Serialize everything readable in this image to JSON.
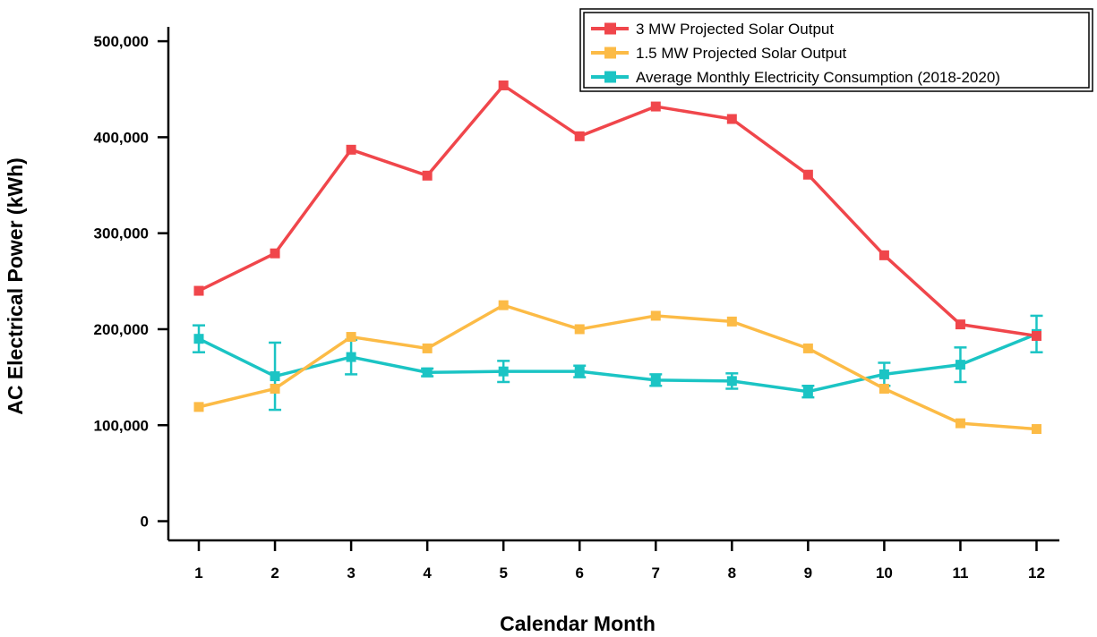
{
  "chart_data": {
    "type": "line",
    "title": "",
    "xlabel": "Calendar Month",
    "ylabel": "AC Electrical Power (kWh)",
    "x": [
      1,
      2,
      3,
      4,
      5,
      6,
      7,
      8,
      9,
      10,
      11,
      12
    ],
    "x_tick_labels": [
      "1",
      "2",
      "3",
      "4",
      "5",
      "6",
      "7",
      "8",
      "9",
      "10",
      "11",
      "12"
    ],
    "xlim": [
      0.6,
      12.3
    ],
    "ylim": [
      -20000,
      515000
    ],
    "y_ticks": [
      0,
      100000,
      200000,
      300000,
      400000,
      500000
    ],
    "y_tick_labels": [
      "0",
      "100,000",
      "200,000",
      "300,000",
      "400,000",
      "500,000"
    ],
    "grid": false,
    "legend_position": "top-right",
    "series": [
      {
        "name": "3 MW Projected Solar Output",
        "color": "#f0464b",
        "values": [
          240000,
          279000,
          387000,
          360000,
          454000,
          401000,
          432000,
          419000,
          361000,
          277000,
          205000,
          193000
        ]
      },
      {
        "name": "1.5 MW Projected Solar Output",
        "color": "#fcbb46",
        "values": [
          119000,
          138000,
          192000,
          180000,
          225000,
          200000,
          214000,
          208000,
          180000,
          138000,
          102000,
          96000
        ]
      },
      {
        "name": "Average Monthly Electricity Consumption (2018-2020)",
        "color": "#1bc4c4",
        "values": [
          190000,
          151000,
          171000,
          155000,
          156000,
          156000,
          147000,
          146000,
          135000,
          153000,
          163000,
          195000
        ],
        "error": [
          14000,
          35000,
          18000,
          4000,
          11000,
          6000,
          6000,
          8000,
          6000,
          12000,
          18000,
          19000
        ]
      }
    ]
  }
}
